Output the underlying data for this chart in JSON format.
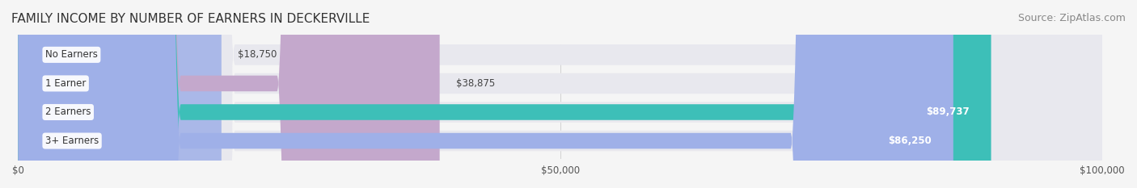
{
  "title": "FAMILY INCOME BY NUMBER OF EARNERS IN DECKERVILLE",
  "source": "Source: ZipAtlas.com",
  "categories": [
    "No Earners",
    "1 Earner",
    "2 Earners",
    "3+ Earners"
  ],
  "values": [
    18750,
    38875,
    89737,
    86250
  ],
  "bar_colors": [
    "#aab8e8",
    "#c4a8cc",
    "#3dbfb8",
    "#9fb0e8"
  ],
  "bar_track_color": "#f0f0f0",
  "label_colors": [
    "#555555",
    "#555555",
    "#ffffff",
    "#ffffff"
  ],
  "value_labels": [
    "$18,750",
    "$38,875",
    "$89,737",
    "$86,250"
  ],
  "xlim": [
    0,
    100000
  ],
  "xticks": [
    0,
    50000,
    100000
  ],
  "xtick_labels": [
    "$0",
    "$50,000",
    "$100,000"
  ],
  "background_color": "#f5f5f5",
  "title_fontsize": 11,
  "source_fontsize": 9
}
